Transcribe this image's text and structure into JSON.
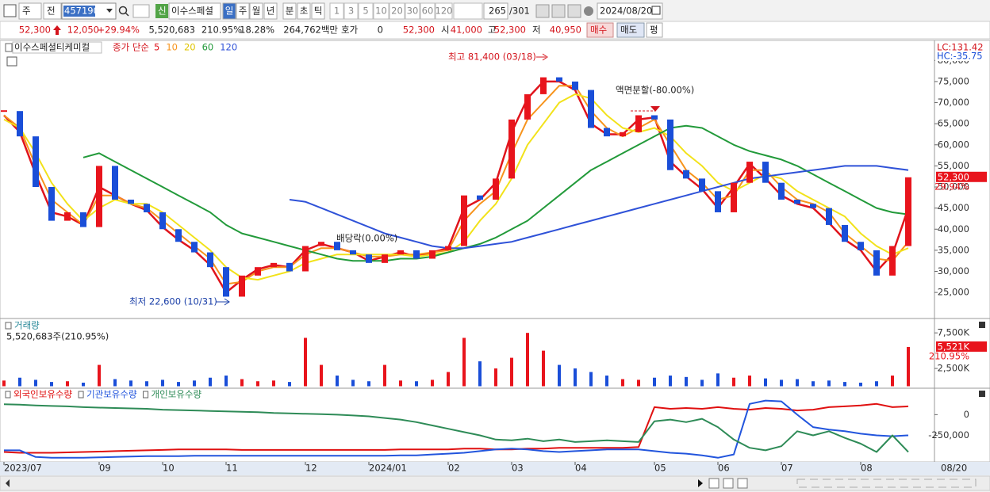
{
  "toolbar": {
    "period": "주",
    "market": "전",
    "code": "457190",
    "new_badge": "신",
    "name": "이수스페셜",
    "intervals": [
      "일",
      "주",
      "월",
      "년",
      "분",
      "초",
      "틱"
    ],
    "steps": [
      "1",
      "3",
      "5",
      "10",
      "20",
      "30",
      "60",
      "120"
    ],
    "count": "265",
    "total": "/301",
    "date": "2024/08/20"
  },
  "info_bar": {
    "price": "52,300",
    "change": "12,050",
    "change_rate": "+29.94%",
    "volume": "5,520,683",
    "volume_ratio": "210.95%",
    "turnover": "18.28%",
    "amount": "264,762백만",
    "quote_label": "호가",
    "quote_qty": "0",
    "quote_price": "52,300",
    "open_label": "시",
    "open": "41,000",
    "high_label": "고",
    "high": "52,300",
    "low_label": "저",
    "low": "40,950",
    "buy": "매수",
    "sell": "매도",
    "avg": "평"
  },
  "chart_data": [
    {
      "type": "candlestick",
      "title": "이수스페셜티케미컬",
      "legend_title": "종가 단순",
      "categories": [
        "2023/07",
        null,
        null,
        null,
        null,
        null,
        "09",
        null,
        null,
        null,
        "10",
        null,
        null,
        null,
        "11",
        null,
        null,
        null,
        null,
        "12",
        null,
        null,
        null,
        "2024/01",
        null,
        null,
        null,
        null,
        "02",
        null,
        null,
        null,
        "03",
        null,
        null,
        null,
        "04",
        null,
        null,
        null,
        null,
        "05",
        null,
        null,
        null,
        "06",
        null,
        null,
        null,
        "07",
        null,
        null,
        null,
        null,
        "08",
        null,
        null,
        null
      ],
      "last_date": "08/20",
      "values": [
        68000,
        62000,
        50000,
        42000,
        44000,
        40500,
        55000,
        47000,
        46000,
        44000,
        40000,
        37000,
        34500,
        31000,
        24000,
        29000,
        31000,
        32000,
        30000,
        36000,
        37000,
        35000,
        34000,
        32000,
        34000,
        35000,
        33000,
        35000,
        36000,
        48000,
        47000,
        52000,
        66000,
        72000,
        76000,
        75000,
        73000,
        64000,
        62000,
        63000,
        67000,
        66000,
        54000,
        52000,
        49000,
        44000,
        51000,
        56000,
        51000,
        47000,
        46000,
        45000,
        41000,
        37000,
        35000,
        29000,
        36000,
        52300
      ],
      "value_labels": [
        null,
        null,
        null,
        null,
        null,
        null,
        null,
        null,
        null,
        null,
        null,
        null,
        null,
        null,
        null,
        null,
        null,
        null,
        null,
        null,
        null,
        null,
        null,
        null,
        null,
        null,
        null,
        null,
        null,
        null,
        null,
        null,
        null,
        null,
        null,
        null,
        null,
        null,
        null,
        null,
        null,
        null,
        null,
        null,
        null,
        null,
        null,
        null,
        null,
        null,
        null,
        null,
        null,
        null,
        null,
        null,
        null,
        "52,300"
      ],
      "change_label": "29.94%",
      "up_color": "#e8141c",
      "down_color": "#1a4ed8",
      "series": [
        {
          "name": "5",
          "color": "#e0141c",
          "values": [
            67000,
            63000,
            53000,
            44000,
            43000,
            41000,
            50000,
            48000,
            46000,
            44500,
            40500,
            37500,
            35000,
            31500,
            25000,
            28000,
            30500,
            31500,
            31000,
            35000,
            36500,
            35500,
            34500,
            32500,
            33500,
            34500,
            33500,
            34500,
            35500,
            45000,
            47000,
            51000,
            63000,
            71000,
            75000,
            75000,
            73000,
            65000,
            62500,
            62500,
            66000,
            66500,
            56000,
            52500,
            49500,
            45000,
            50000,
            55500,
            52000,
            48000,
            46000,
            45000,
            41500,
            37500,
            35000,
            30000,
            34000,
            45000
          ]
        },
        {
          "name": "10",
          "color": "#f7941d",
          "values": [
            67000,
            64000,
            55000,
            47000,
            44000,
            41000,
            48000,
            48000,
            46000,
            45000,
            42000,
            39000,
            36000,
            33000,
            27000,
            27500,
            30000,
            31000,
            31000,
            34000,
            35500,
            35500,
            34500,
            33500,
            33500,
            34000,
            34000,
            34500,
            35000,
            42000,
            46000,
            49000,
            58000,
            66000,
            70000,
            74000,
            74000,
            68000,
            64000,
            62000,
            64000,
            66000,
            60000,
            54000,
            51000,
            47000,
            48000,
            54000,
            54000,
            50000,
            47000,
            46000,
            44000,
            39000,
            36000,
            33000,
            32500,
            37000
          ]
        },
        {
          "name": "20",
          "color": "#f2e21a",
          "values": [
            66000,
            64000,
            58000,
            51000,
            46000,
            42000,
            45000,
            47000,
            46000,
            46000,
            44000,
            41000,
            38000,
            35000,
            31000,
            28500,
            28000,
            29000,
            30000,
            32000,
            33000,
            34000,
            34000,
            34000,
            34000,
            34000,
            33500,
            34000,
            34500,
            37000,
            42000,
            46000,
            52000,
            60000,
            65000,
            70000,
            72000,
            71000,
            67000,
            64000,
            63000,
            64000,
            62000,
            58000,
            55000,
            51000,
            49000,
            51000,
            53000,
            52000,
            49000,
            47000,
            45000,
            43000,
            39000,
            36000,
            34000,
            35500
          ]
        },
        {
          "name": "60",
          "color": "#229a3a",
          "values": [
            null,
            null,
            null,
            null,
            null,
            57000,
            58000,
            56000,
            54000,
            52000,
            50000,
            48000,
            46000,
            44000,
            41000,
            39000,
            38000,
            37000,
            36000,
            35000,
            34000,
            33000,
            32500,
            32500,
            32500,
            33000,
            33000,
            33500,
            34500,
            35500,
            36500,
            38000,
            40000,
            42000,
            45000,
            48000,
            51000,
            54000,
            56000,
            58000,
            60000,
            62000,
            64000,
            64500,
            64000,
            62000,
            60000,
            58500,
            57500,
            56500,
            55000,
            53000,
            51000,
            49000,
            47000,
            45000,
            44000,
            43500
          ]
        },
        {
          "name": "120",
          "color": "#2f52d8",
          "values": [
            null,
            null,
            null,
            null,
            null,
            null,
            null,
            null,
            null,
            null,
            null,
            null,
            null,
            null,
            null,
            null,
            null,
            null,
            47000,
            46500,
            45000,
            43500,
            42000,
            40500,
            39000,
            38000,
            37000,
            36000,
            35500,
            35500,
            36000,
            36500,
            37000,
            38000,
            39000,
            40000,
            41000,
            42000,
            43000,
            44000,
            45000,
            46000,
            47000,
            48000,
            49000,
            50000,
            51000,
            52000,
            52500,
            53000,
            53500,
            54000,
            54500,
            55000,
            55000,
            55000,
            54500,
            54000
          ]
        }
      ],
      "ylim": [
        19200,
        84000
      ],
      "yticks": [
        {
          "value": 25000,
          "label": "25,000"
        },
        {
          "value": 30000,
          "label": "30,000"
        },
        {
          "value": 35000,
          "label": "35,000"
        },
        {
          "value": 40000,
          "label": "40,000"
        },
        {
          "value": 45000,
          "label": "45,000"
        },
        {
          "value": 50000,
          "label": "50,000"
        },
        {
          "value": 55000,
          "label": "55,000"
        },
        {
          "value": 60000,
          "label": "60,000"
        },
        {
          "value": 65000,
          "label": "65,000"
        },
        {
          "value": 70000,
          "label": "70,000"
        },
        {
          "value": 75000,
          "label": "75,000"
        },
        {
          "value": 80000,
          "label": "80,000"
        }
      ],
      "scale_labels": [
        "LC:131.42",
        "HC:-35.75"
      ],
      "annotations": [
        "최고 81,400 (03/18)",
        "액면분할(-80.00%)",
        "배당락(0.00%)",
        "최저 22,600 (10/31)"
      ]
    },
    {
      "type": "bar",
      "title": "거래량",
      "subtitle": "5,520,683주(210.95%)",
      "values": [
        800,
        1200,
        900,
        600,
        700,
        500,
        3000,
        1000,
        800,
        700,
        900,
        600,
        800,
        1200,
        1500,
        1000,
        700,
        800,
        600,
        6800,
        3000,
        1500,
        900,
        700,
        3000,
        800,
        700,
        900,
        2000,
        6800,
        3500,
        2500,
        4000,
        7500,
        5000,
        3000,
        2500,
        2000,
        1500,
        1000,
        900,
        1200,
        1500,
        1300,
        900,
        1800,
        1200,
        1500,
        1100,
        900,
        1000,
        700,
        800,
        600,
        500,
        700,
        1500,
        5521
      ],
      "value_labels": [
        null,
        null,
        null,
        null,
        null,
        null,
        null,
        null,
        null,
        null,
        null,
        null,
        null,
        null,
        null,
        null,
        null,
        null,
        null,
        null,
        null,
        null,
        null,
        null,
        null,
        null,
        null,
        null,
        null,
        null,
        null,
        null,
        null,
        null,
        null,
        null,
        null,
        null,
        null,
        null,
        null,
        null,
        null,
        null,
        null,
        null,
        null,
        null,
        null,
        null,
        null,
        null,
        null,
        null,
        null,
        null,
        null,
        "5,521K"
      ],
      "ratio_label": "210.95%",
      "ylim": [
        0,
        9300
      ],
      "yticks": [
        {
          "value": 2500,
          "label": "2,500K"
        },
        {
          "value": 7500,
          "label": "7,500K"
        }
      ]
    },
    {
      "type": "line",
      "series": [
        {
          "name": "외국인보유수량",
          "color": "#e01010",
          "values": [
            -450000,
            -460000,
            -460000,
            -460000,
            -455000,
            -450000,
            -445000,
            -440000,
            -435000,
            -430000,
            -425000,
            -420000,
            -420000,
            -420000,
            -420000,
            -425000,
            -425000,
            -425000,
            -425000,
            -425000,
            -425000,
            -425000,
            -425000,
            -425000,
            -425000,
            -420000,
            -420000,
            -420000,
            -420000,
            -410000,
            -410000,
            -420000,
            -420000,
            -410000,
            -410000,
            -400000,
            -400000,
            -400000,
            -400000,
            -400000,
            -390000,
            90000,
            70000,
            80000,
            70000,
            90000,
            70000,
            60000,
            80000,
            70000,
            50000,
            60000,
            90000,
            100000,
            110000,
            130000,
            90000,
            100000
          ]
        },
        {
          "name": "기관보유수량",
          "color": "#2255dd",
          "values": [
            -430000,
            -430000,
            -510000,
            -520000,
            -520000,
            -520000,
            -515000,
            -510000,
            -505000,
            -500000,
            -500000,
            -500000,
            -495000,
            -495000,
            -495000,
            -495000,
            -495000,
            -495000,
            -495000,
            -495000,
            -495000,
            -495000,
            -495000,
            -495000,
            -495000,
            -490000,
            -490000,
            -480000,
            -470000,
            -460000,
            -440000,
            -420000,
            -410000,
            -420000,
            -440000,
            -450000,
            -440000,
            -430000,
            -420000,
            -420000,
            -420000,
            -440000,
            -460000,
            -470000,
            -490000,
            -520000,
            -480000,
            130000,
            170000,
            160000,
            0,
            -150000,
            -180000,
            -200000,
            -230000,
            -250000,
            -260000,
            -250000
          ]
        },
        {
          "name": "개인보유수량",
          "color": "#2e8b57",
          "values": [
            125000,
            120000,
            110000,
            105000,
            100000,
            90000,
            85000,
            80000,
            75000,
            70000,
            60000,
            55000,
            50000,
            45000,
            40000,
            35000,
            30000,
            20000,
            15000,
            10000,
            5000,
            0,
            -10000,
            -20000,
            -40000,
            -60000,
            -90000,
            -130000,
            -170000,
            -210000,
            -250000,
            -300000,
            -310000,
            -290000,
            -320000,
            -300000,
            -330000,
            -320000,
            -310000,
            -320000,
            -330000,
            -80000,
            -60000,
            -90000,
            -50000,
            -150000,
            -300000,
            -400000,
            -430000,
            -380000,
            -200000,
            -250000,
            -200000,
            -280000,
            -350000,
            -450000,
            -250000,
            -450000
          ]
        }
      ],
      "ylim": [
        -560000,
        290000
      ],
      "yticks": [
        0,
        {
          "value": -250000,
          "label": "-250,000"
        }
      ]
    }
  ]
}
